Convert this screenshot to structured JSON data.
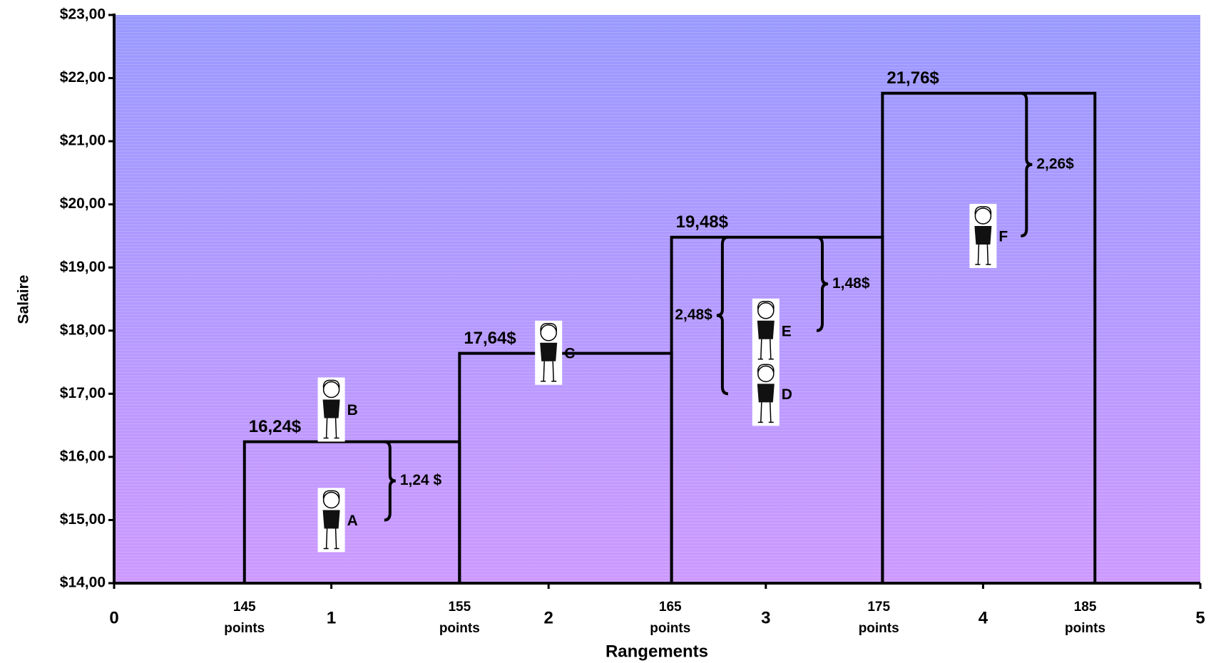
{
  "chart_data": {
    "type": "step",
    "y_label": "Salaire",
    "x_label": "Rangements",
    "ylim": [
      14,
      23
    ],
    "yticks": [
      {
        "value": 14,
        "label": "$14,00"
      },
      {
        "value": 15,
        "label": "$15,00"
      },
      {
        "value": 16,
        "label": "$16,00"
      },
      {
        "value": 17,
        "label": "$17,00"
      },
      {
        "value": 18,
        "label": "$18,00"
      },
      {
        "value": 19,
        "label": "$19,00"
      },
      {
        "value": 20,
        "label": "$20,00"
      },
      {
        "value": 21,
        "label": "$21,00"
      },
      {
        "value": 22,
        "label": "$22,00"
      },
      {
        "value": 23,
        "label": "$23,00"
      }
    ],
    "xlim": [
      0,
      5
    ],
    "xticks": [
      0,
      1,
      2,
      3,
      4,
      5
    ],
    "point_ticks": [
      {
        "value": 0.6,
        "label": "145 points"
      },
      {
        "value": 1.59,
        "label": "155 points"
      },
      {
        "value": 2.56,
        "label": "165 points"
      },
      {
        "value": 3.52,
        "label": "175 points"
      },
      {
        "value": 4.47,
        "label": "185 points"
      }
    ],
    "steps": [
      {
        "x0": 0.6,
        "x1": 1.59,
        "value": 16.24,
        "value_label": "16,24$"
      },
      {
        "x0": 1.59,
        "x1": 2.566,
        "value": 17.64,
        "value_label": "17,64$"
      },
      {
        "x0": 2.566,
        "x1": 3.537,
        "value": 19.48,
        "value_label": "19,48$"
      },
      {
        "x0": 3.537,
        "x1": 4.515,
        "value": 21.76,
        "value_label": "21,76$"
      }
    ],
    "employees": [
      {
        "name": "A",
        "x": 1,
        "y": 15.0
      },
      {
        "name": "B",
        "x": 1,
        "y": 16.75
      },
      {
        "name": "C",
        "x": 2,
        "y": 17.65
      },
      {
        "name": "D",
        "x": 3,
        "y": 17.0
      },
      {
        "name": "E",
        "x": 3,
        "y": 18.0
      },
      {
        "name": "F",
        "x": 4,
        "y": 19.5
      }
    ],
    "braces": [
      {
        "text": "1,24 $",
        "x": 1.27,
        "from": 15.0,
        "to": 16.24,
        "side": "right"
      },
      {
        "text": "2,48$",
        "x": 2.8,
        "from": 17.0,
        "to": 19.48,
        "side": "left"
      },
      {
        "text": "1,48$",
        "x": 3.26,
        "from": 18.0,
        "to": 19.48,
        "side": "right"
      },
      {
        "text": "2,26$",
        "x": 4.2,
        "from": 19.5,
        "to": 21.76,
        "side": "right"
      }
    ]
  }
}
